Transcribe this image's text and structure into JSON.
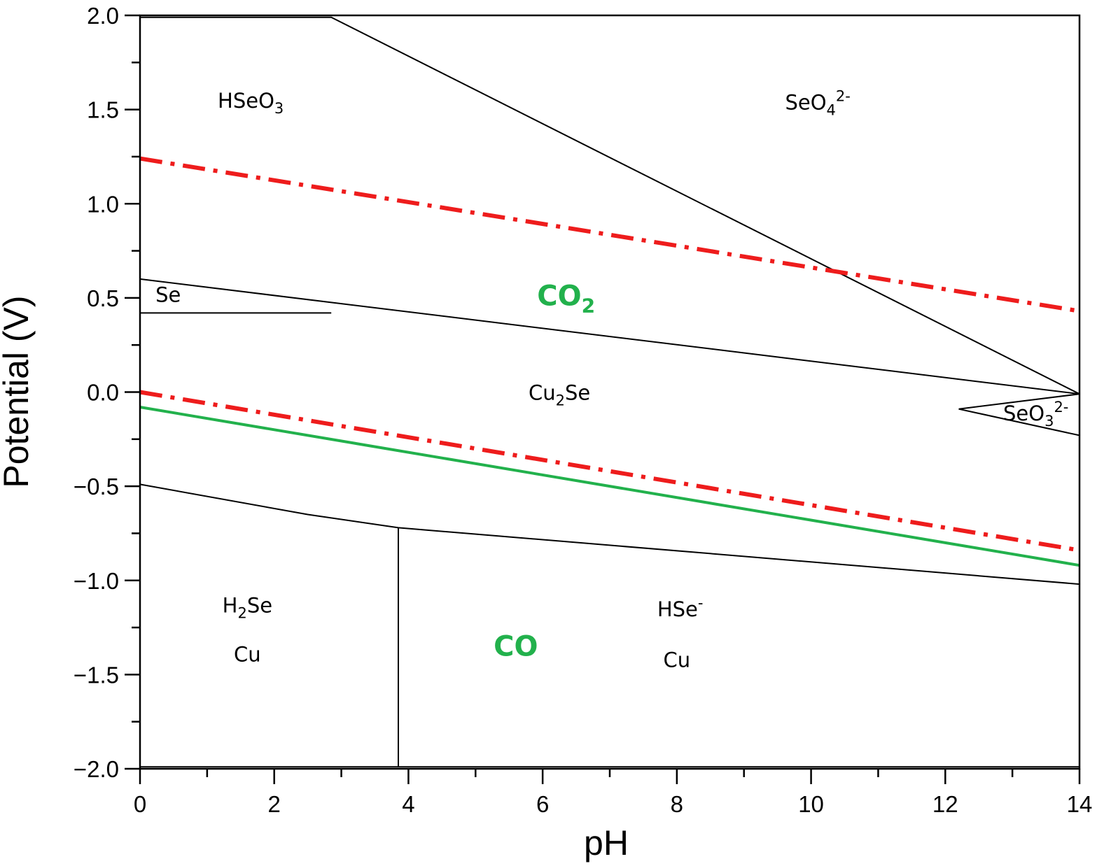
{
  "chart_data": {
    "type": "line",
    "title": "",
    "xlabel": "pH",
    "ylabel": "Potential (V)",
    "xlim": [
      0,
      14
    ],
    "ylim": [
      -2.0,
      2.0
    ],
    "xticks": [
      0,
      2,
      4,
      6,
      8,
      10,
      12,
      14
    ],
    "xtick_labels": [
      "0",
      "2",
      "4",
      "6",
      "8",
      "10",
      "12",
      "14"
    ],
    "yticks": [
      2.0,
      1.5,
      1.0,
      0.5,
      0.0,
      -0.5,
      -1.0,
      -1.5,
      -2.0
    ],
    "ytick_labels": [
      "2.0",
      "1.5",
      "1.0",
      "0.5",
      "0.0",
      "−0.5",
      "−1.0",
      "−1.5",
      "−2.0"
    ],
    "x_minor_step": 1,
    "grid": false,
    "boundaries": [
      {
        "points": [
          [
            0,
            1.99
          ],
          [
            2.85,
            1.99
          ],
          [
            14,
            -0.01
          ]
        ]
      },
      {
        "points": [
          [
            0,
            0.6
          ],
          [
            14,
            -0.01
          ]
        ]
      },
      {
        "points": [
          [
            0,
            0.6
          ],
          [
            0,
            1.99
          ]
        ]
      },
      {
        "points": [
          [
            0,
            0.42
          ],
          [
            2.85,
            0.42
          ]
        ]
      },
      {
        "points": [
          [
            12.2,
            -0.09
          ],
          [
            14,
            -0.01
          ]
        ]
      },
      {
        "points": [
          [
            12.2,
            -0.09
          ],
          [
            14,
            -0.23
          ]
        ]
      },
      {
        "points": [
          [
            14,
            -0.01
          ],
          [
            14,
            -0.23
          ]
        ]
      },
      {
        "points": [
          [
            0,
            -0.49
          ],
          [
            2.5,
            -0.65
          ],
          [
            3.85,
            -0.72
          ],
          [
            14,
            -1.02
          ]
        ]
      },
      {
        "points": [
          [
            3.85,
            -0.72
          ],
          [
            3.85,
            -1.99
          ]
        ]
      },
      {
        "points": [
          [
            0,
            -1.99
          ],
          [
            14,
            -1.99
          ]
        ]
      },
      {
        "points": [
          [
            0,
            -1.99
          ],
          [
            0,
            -0.49
          ]
        ]
      },
      {
        "points": [
          [
            14,
            -1.02
          ],
          [
            14,
            -1.99
          ]
        ]
      }
    ],
    "reference_lines": [
      {
        "style": "dash-dot",
        "color": "#ee1c1c",
        "points": [
          [
            0,
            1.24
          ],
          [
            14,
            0.43
          ]
        ]
      },
      {
        "style": "dash-dot",
        "color": "#ee1c1c",
        "points": [
          [
            0,
            0.0
          ],
          [
            14,
            -0.84
          ]
        ]
      },
      {
        "style": "solid",
        "color": "#22b14c",
        "points": [
          [
            0,
            -0.08
          ],
          [
            14,
            -0.92
          ]
        ]
      }
    ],
    "region_labels": [
      {
        "text": "HSeO",
        "sub": "3",
        "sup": "",
        "x": 1.65,
        "y": 1.51
      },
      {
        "text": "SeO",
        "sub": "4",
        "sup": "2-",
        "x": 10.1,
        "y": 1.5
      },
      {
        "text": "Se",
        "sub": "",
        "sup": "",
        "x": 0.42,
        "y": 0.48
      },
      {
        "text": "Cu",
        "sub": "2",
        "sup": "Se",
        "x": 6.25,
        "y": -0.04
      },
      {
        "text": "SeO",
        "sub": "3",
        "sup": "2-",
        "x": 13.35,
        "y": -0.15
      },
      {
        "text": "H",
        "sub": "2",
        "sup": "Se",
        "x": 1.6,
        "y": -1.17
      },
      {
        "text": "Cu",
        "sub": "",
        "sup": "",
        "x": 1.6,
        "y": -1.43
      },
      {
        "text": "HSe",
        "sub": "",
        "sup": "-",
        "x": 8.05,
        "y": -1.19
      },
      {
        "text": "Cu",
        "sub": "",
        "sup": "",
        "x": 8.0,
        "y": -1.46
      }
    ],
    "gas_labels": [
      {
        "text": "CO",
        "sub": "2",
        "x": 6.35,
        "y": 0.46
      },
      {
        "text": "CO",
        "sub": "",
        "x": 5.6,
        "y": -1.4
      }
    ],
    "colors": {
      "axis": "#000000",
      "boundary": "#000000",
      "co2_reduction_dash": "#ee1c1c",
      "co_reduction": "#22b14c",
      "gas_text": "#22b14c"
    }
  }
}
